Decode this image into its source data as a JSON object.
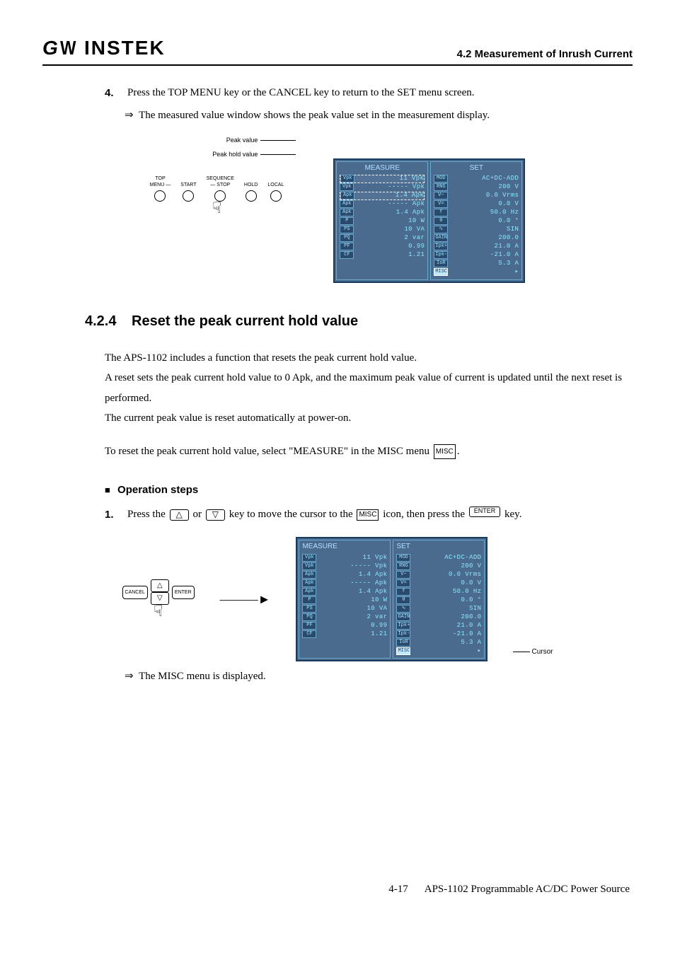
{
  "header": {
    "logo": "GW INSTEK",
    "section": "4.2 Measurement of Inrush Current"
  },
  "step4": {
    "num": "4.",
    "text": "Press the TOP MENU key or the CANCEL key to return to the SET menu screen.",
    "result": "The measured value window shows the peak value set in the measurement display."
  },
  "fig1": {
    "peak_value_label": "Peak value",
    "peak_hold_label": "Peak hold value",
    "keys": [
      {
        "top": "TOP",
        "bottom": "MENU",
        "dash_right": true
      },
      {
        "top": "",
        "bottom": "START"
      },
      {
        "top": "SEQUENCE",
        "bottom": "STOP",
        "dash_left": true
      },
      {
        "top": "",
        "bottom": "HOLD"
      },
      {
        "top": "",
        "bottom": "LOCAL"
      }
    ]
  },
  "lcd": {
    "measure_title": "MEASURE",
    "set_title": "SET",
    "measure_rows": [
      {
        "tag": "Vpk",
        "val": "11 Vpk",
        "hl": true
      },
      {
        "tag": "Vpk",
        "val": "----- Vpk"
      },
      {
        "tag": "Apk",
        "val": "1.4 Apk",
        "hl": true
      },
      {
        "tag": "Apk",
        "val": "----- Apk"
      },
      {
        "tag": "Apk",
        "val": "1.4 Apk"
      },
      {
        "tag": "P",
        "val": "10 W"
      },
      {
        "tag": "PS",
        "val": "10 VA"
      },
      {
        "tag": "PQ",
        "val": "2 var"
      },
      {
        "tag": "PF",
        "val": "0.99"
      },
      {
        "tag": "CF",
        "val": "1.21"
      }
    ],
    "set_rows": [
      {
        "tag": "MOD",
        "val": "AC+DC-ADD"
      },
      {
        "tag": "RNG",
        "val": "200 V"
      },
      {
        "tag": "V~",
        "val": "0.0 Vrms"
      },
      {
        "tag": "V=",
        "val": "0.0 V"
      },
      {
        "tag": "f",
        "val": "50.0 Hz"
      },
      {
        "tag": "θ",
        "val": "0.0 °"
      },
      {
        "tag": "∿",
        "val": "SIN"
      },
      {
        "tag": "GAIN",
        "val": "200.0"
      },
      {
        "tag": "Ipk+",
        "val": "21.0 A"
      },
      {
        "tag": "Ipk-",
        "val": "-21.0 A"
      },
      {
        "tag": "IoR",
        "val": "5.3 A",
        "cursor": true
      },
      {
        "tag": "MISC",
        "val": "▸",
        "misc": true
      }
    ]
  },
  "subsection": {
    "num": "4.2.4",
    "title": "Reset the peak current hold value"
  },
  "para1_l1": "The APS-1102 includes a function that resets the peak current hold value.",
  "para1_l2": "A reset sets the peak current hold value to 0 Apk, and the maximum peak value of current is updated until the next reset is performed.",
  "para1_l3": "The current peak value is reset automatically at power-on.",
  "para2_pre": "To reset the peak current hold value, select \"MEASURE\" in the MISC menu ",
  "para2_post": ".",
  "op_steps_label": "Operation steps",
  "step1": {
    "num": "1.",
    "pre": "Press the ",
    "mid1": " or ",
    "mid2": " key to move the cursor to the ",
    "mid3": " icon, then press the ",
    "post": " key.",
    "up": "△",
    "down": "▽",
    "enter": "ENTER",
    "misc": "MISC"
  },
  "fig2": {
    "cancel": "CANCEL",
    "enter": "ENTER",
    "up": "△",
    "down": "▽",
    "cursor_label": "Cursor"
  },
  "result2": "The MISC menu is displayed.",
  "footer": {
    "page": "4-17",
    "title": "APS-1102 Programmable AC/DC Power Source"
  },
  "colors": {
    "lcd_bg": "#4a6a8e",
    "lcd_border": "#1a3a5c",
    "lcd_text": "#8ce8f8",
    "lcd_panel_border": "#6aa8d0"
  }
}
